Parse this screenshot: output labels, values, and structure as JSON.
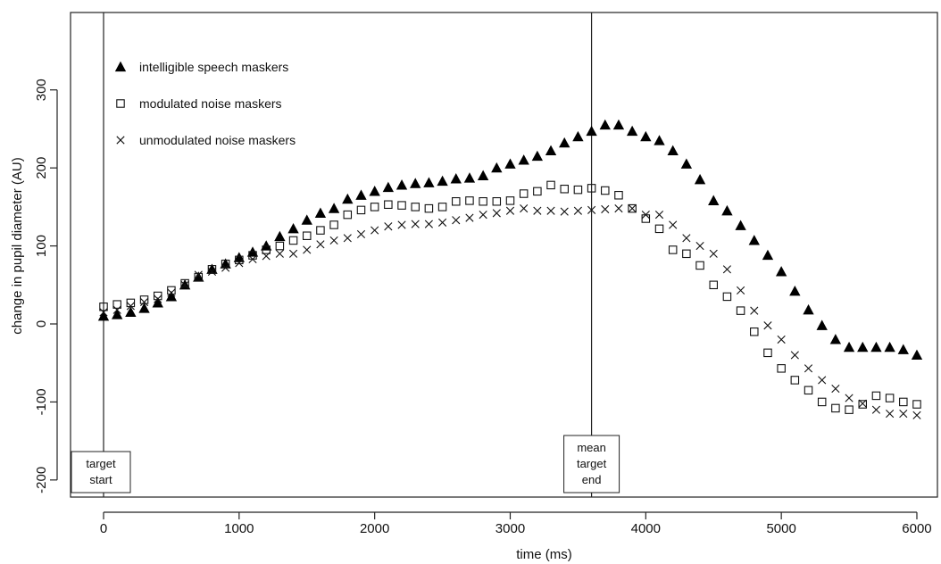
{
  "chart_data": {
    "type": "scatter",
    "title": "",
    "xlabel": "time (ms)",
    "ylabel": "change in pupil diameter (AU)",
    "xlim": [
      -250,
      6100
    ],
    "ylim": [
      -225,
      400
    ],
    "xticks": [
      0,
      1000,
      2000,
      3000,
      4000,
      5000,
      6000
    ],
    "yticks": [
      -200,
      -100,
      0,
      100,
      200,
      300
    ],
    "grid": false,
    "legend_placement": "top-left",
    "x": [
      0,
      100,
      200,
      300,
      400,
      500,
      600,
      700,
      800,
      900,
      1000,
      1100,
      1200,
      1300,
      1400,
      1500,
      1600,
      1700,
      1800,
      1900,
      2000,
      2100,
      2200,
      2300,
      2400,
      2500,
      2600,
      2700,
      2800,
      2900,
      3000,
      3100,
      3200,
      3300,
      3400,
      3500,
      3600,
      3700,
      3800,
      3900,
      4000,
      4100,
      4200,
      4300,
      4400,
      4500,
      4600,
      4700,
      4800,
      4900,
      5000,
      5100,
      5200,
      5300,
      5400,
      5500,
      5600,
      5700,
      5800,
      5900,
      6000
    ],
    "series": [
      {
        "name": "intelligible speech maskers",
        "marker": "filled-triangle",
        "values": [
          10,
          12,
          15,
          20,
          27,
          35,
          50,
          60,
          70,
          77,
          85,
          92,
          100,
          112,
          122,
          133,
          142,
          148,
          160,
          165,
          170,
          175,
          178,
          180,
          181,
          183,
          186,
          187,
          190,
          200,
          205,
          210,
          215,
          222,
          232,
          240,
          247,
          255,
          255,
          247,
          240,
          235,
          222,
          205,
          185,
          158,
          145,
          126,
          107,
          88,
          67,
          42,
          18,
          -2,
          -20,
          -30,
          -30,
          -30,
          -30,
          -33,
          -40
        ]
      },
      {
        "name": "modulated noise maskers",
        "marker": "open-square",
        "values": [
          22,
          25,
          27,
          31,
          36,
          43,
          52,
          60,
          70,
          77,
          82,
          88,
          95,
          100,
          107,
          113,
          120,
          127,
          140,
          146,
          150,
          153,
          152,
          150,
          148,
          150,
          157,
          158,
          157,
          157,
          158,
          167,
          170,
          178,
          173,
          172,
          174,
          171,
          165,
          148,
          135,
          122,
          95,
          90,
          75,
          50,
          35,
          17,
          -10,
          -37,
          -57,
          -72,
          -85,
          -100,
          -108,
          -110,
          -103,
          -92,
          -95,
          -100,
          -103
        ]
      },
      {
        "name": "unmodulated noise maskers",
        "marker": "x",
        "values": [
          15,
          18,
          23,
          28,
          32,
          40,
          50,
          63,
          67,
          72,
          78,
          83,
          87,
          90,
          90,
          95,
          102,
          107,
          110,
          115,
          120,
          125,
          127,
          128,
          128,
          130,
          133,
          136,
          140,
          142,
          145,
          148,
          145,
          145,
          144,
          145,
          146,
          147,
          148,
          148,
          140,
          140,
          127,
          110,
          100,
          90,
          70,
          43,
          17,
          -2,
          -20,
          -40,
          -57,
          -72,
          -83,
          -95,
          -102,
          -110,
          -115,
          -115,
          -117
        ]
      }
    ],
    "vlines": [
      {
        "x": 0,
        "label_lines": [
          "target",
          "start"
        ]
      },
      {
        "x": 3600,
        "label_lines": [
          "mean",
          "target",
          "end"
        ]
      }
    ]
  }
}
